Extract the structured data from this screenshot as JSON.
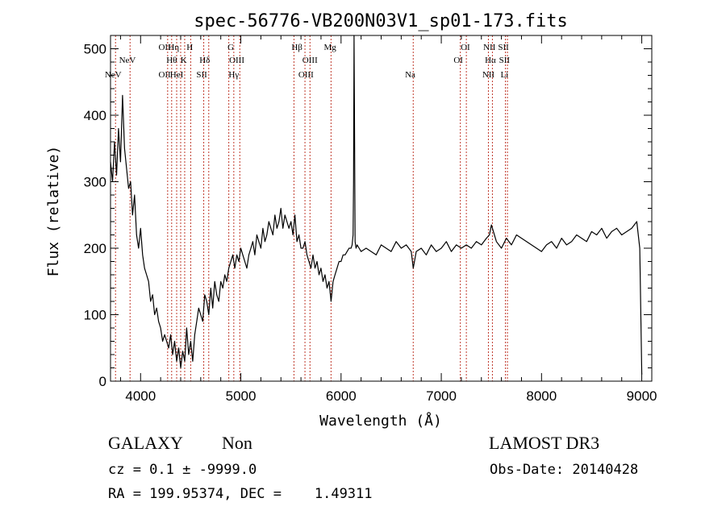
{
  "chart_data": {
    "type": "line",
    "title": "spec-56776-VB200N03V1_sp01-173.fits",
    "xlabel": "Wavelength (Å)",
    "ylabel": "Flux (relative)",
    "xlim": [
      3700,
      9100
    ],
    "ylim": [
      0,
      520
    ],
    "xticks": [
      4000,
      5000,
      6000,
      7000,
      8000,
      9000
    ],
    "yticks": [
      0,
      100,
      200,
      300,
      400,
      500
    ],
    "grid": false,
    "series": [
      {
        "name": "",
        "x": [
          3700,
          3720,
          3740,
          3760,
          3780,
          3800,
          3820,
          3840,
          3860,
          3880,
          3900,
          3920,
          3940,
          3960,
          3980,
          4000,
          4020,
          4040,
          4060,
          4080,
          4100,
          4120,
          4140,
          4160,
          4180,
          4200,
          4220,
          4240,
          4260,
          4280,
          4300,
          4320,
          4340,
          4360,
          4380,
          4400,
          4420,
          4440,
          4460,
          4480,
          4500,
          4520,
          4540,
          4560,
          4580,
          4600,
          4620,
          4640,
          4660,
          4680,
          4700,
          4720,
          4740,
          4760,
          4780,
          4800,
          4820,
          4840,
          4860,
          4880,
          4900,
          4920,
          4940,
          4960,
          4980,
          5000,
          5020,
          5040,
          5060,
          5080,
          5100,
          5120,
          5140,
          5160,
          5180,
          5200,
          5220,
          5240,
          5260,
          5280,
          5300,
          5320,
          5340,
          5360,
          5380,
          5400,
          5420,
          5440,
          5460,
          5480,
          5500,
          5520,
          5540,
          5560,
          5580,
          5600,
          5620,
          5640,
          5660,
          5680,
          5700,
          5720,
          5740,
          5760,
          5780,
          5800,
          5820,
          5840,
          5860,
          5880,
          5900,
          5920,
          5940,
          5960,
          5980,
          6000,
          6020,
          6040,
          6060,
          6080,
          6100,
          6110,
          6120,
          6125,
          6130,
          6135,
          6140,
          6150,
          6160,
          6180,
          6200,
          6250,
          6300,
          6350,
          6400,
          6450,
          6500,
          6550,
          6600,
          6650,
          6700,
          6720,
          6750,
          6800,
          6850,
          6900,
          6950,
          7000,
          7050,
          7100,
          7150,
          7200,
          7250,
          7300,
          7350,
          7400,
          7450,
          7480,
          7500,
          7550,
          7600,
          7650,
          7700,
          7750,
          7800,
          7850,
          7900,
          7950,
          8000,
          8050,
          8100,
          8150,
          8200,
          8250,
          8300,
          8350,
          8400,
          8450,
          8500,
          8550,
          8600,
          8650,
          8700,
          8750,
          8800,
          8850,
          8900,
          8950,
          8980,
          9000
        ],
        "y": [
          330,
          300,
          360,
          310,
          380,
          330,
          430,
          350,
          320,
          290,
          300,
          250,
          280,
          220,
          200,
          230,
          190,
          170,
          160,
          150,
          120,
          130,
          100,
          110,
          90,
          80,
          60,
          70,
          60,
          50,
          70,
          40,
          60,
          30,
          50,
          20,
          45,
          30,
          80,
          40,
          60,
          30,
          70,
          90,
          110,
          100,
          90,
          130,
          120,
          100,
          140,
          110,
          150,
          130,
          120,
          150,
          140,
          160,
          150,
          170,
          180,
          190,
          170,
          190,
          180,
          200,
          190,
          180,
          170,
          190,
          200,
          210,
          190,
          220,
          210,
          200,
          230,
          210,
          220,
          240,
          230,
          220,
          250,
          230,
          240,
          260,
          230,
          250,
          240,
          230,
          240,
          220,
          250,
          210,
          220,
          200,
          200,
          210,
          190,
          180,
          170,
          190,
          170,
          180,
          160,
          170,
          150,
          160,
          140,
          150,
          120,
          150,
          160,
          170,
          180,
          180,
          190,
          190,
          195,
          200,
          200,
          205,
          220,
          300,
          520,
          360,
          210,
          200,
          205,
          200,
          195,
          200,
          195,
          190,
          205,
          200,
          195,
          210,
          200,
          205,
          195,
          170,
          195,
          200,
          190,
          205,
          195,
          200,
          210,
          195,
          205,
          200,
          205,
          200,
          210,
          205,
          215,
          220,
          235,
          210,
          200,
          215,
          205,
          220,
          215,
          210,
          205,
          200,
          195,
          205,
          210,
          200,
          215,
          205,
          210,
          220,
          215,
          210,
          225,
          220,
          230,
          215,
          225,
          230,
          220,
          225,
          230,
          240,
          200,
          10
        ]
      }
    ],
    "line_labels": [
      {
        "text": "NeV",
        "x": 3726,
        "row": 3
      },
      {
        "text": "NeV",
        "x": 3869,
        "row": 2
      },
      {
        "text": "OII",
        "x": 4240,
        "row": 1
      },
      {
        "text": "Hη",
        "x": 4330,
        "row": 1
      },
      {
        "text": "H",
        "x": 4490,
        "row": 1
      },
      {
        "text": "Hθ",
        "x": 4310,
        "row": 2
      },
      {
        "text": "K",
        "x": 4430,
        "row": 2
      },
      {
        "text": "Hδ",
        "x": 4640,
        "row": 2
      },
      {
        "text": "OII",
        "x": 4240,
        "row": 3
      },
      {
        "text": "HeI",
        "x": 4360,
        "row": 3
      },
      {
        "text": "SII",
        "x": 4610,
        "row": 3
      },
      {
        "text": "G",
        "x": 4900,
        "row": 1
      },
      {
        "text": "OIII",
        "x": 4960,
        "row": 2
      },
      {
        "text": "Hγ",
        "x": 4930,
        "row": 3
      },
      {
        "text": "Hβ",
        "x": 5560,
        "row": 1
      },
      {
        "text": "OIII",
        "x": 5690,
        "row": 2
      },
      {
        "text": "OIII",
        "x": 5650,
        "row": 3
      },
      {
        "text": "Mg",
        "x": 5890,
        "row": 1
      },
      {
        "text": "Na",
        "x": 6690,
        "row": 3
      },
      {
        "text": "OI",
        "x": 7240,
        "row": 1
      },
      {
        "text": "OI",
        "x": 7170,
        "row": 2
      },
      {
        "text": "NII",
        "x": 7480,
        "row": 1
      },
      {
        "text": "SII",
        "x": 7620,
        "row": 1
      },
      {
        "text": "Hα",
        "x": 7490,
        "row": 2
      },
      {
        "text": "SII",
        "x": 7630,
        "row": 2
      },
      {
        "text": "NII",
        "x": 7470,
        "row": 3
      },
      {
        "text": "Li",
        "x": 7630,
        "row": 3
      }
    ],
    "marker_lines": [
      3750,
      3895,
      4270,
      4310,
      4360,
      4400,
      4440,
      4500,
      4630,
      4680,
      4880,
      4930,
      4990,
      5530,
      5640,
      5690,
      5900,
      6720,
      7190,
      7250,
      7470,
      7510,
      7640,
      7660
    ],
    "marker_color": "#c0392b"
  },
  "info": {
    "object_class": "GALAXY",
    "object_subclass": "Non",
    "release": "LAMOST DR3",
    "cz_text": "cz = 0.1 ± -9999.0",
    "obs_date_text": "Obs-Date: 20140428",
    "radec_text": "RA = 199.95374, DEC =    1.49311"
  }
}
